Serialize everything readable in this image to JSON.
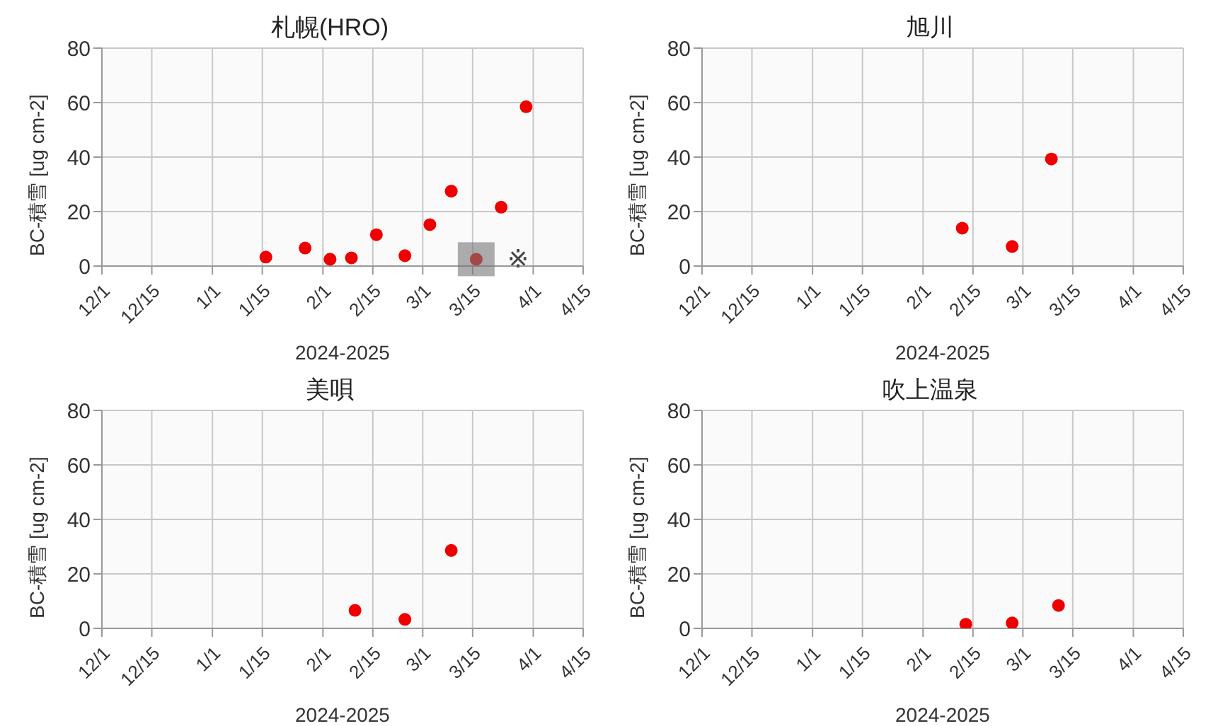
{
  "chart_data": [
    {
      "type": "scatter",
      "title": "札幌(HRO)",
      "xlabel": "2024-2025",
      "ylabel": "BC-積雪 [ug cm-2]",
      "marker": "circle",
      "grid": true,
      "x": [
        "2025-01-16",
        "2025-01-27",
        "2025-02-03",
        "2025-02-09",
        "2025-02-16",
        "2025-02-24",
        "2025-03-03",
        "2025-03-09",
        "2025-03-16",
        "2025-03-23",
        "2025-03-30"
      ],
      "series": [
        {
          "color": "#ee0000",
          "values": [
            3.3,
            6.6,
            2.5,
            3,
            11.5,
            3.8,
            15.2,
            27.5,
            2.5,
            21.6,
            58.5
          ]
        }
      ],
      "xlim": [
        "2024-12-01",
        "2025-04-15"
      ],
      "xticks": [
        {
          "value": "2024-12-01",
          "label": "12/1"
        },
        {
          "value": "2024-12-15",
          "label": "12/15"
        },
        {
          "value": "2025-01-01",
          "label": "1/1"
        },
        {
          "value": "2025-01-15",
          "label": "1/15"
        },
        {
          "value": "2025-02-01",
          "label": "2/1"
        },
        {
          "value": "2025-02-15",
          "label": "2/15"
        },
        {
          "value": "2025-03-01",
          "label": "3/1"
        },
        {
          "value": "2025-03-15",
          "label": "3/15"
        },
        {
          "value": "2025-04-01",
          "label": "4/1"
        },
        {
          "value": "2025-04-15",
          "label": "4/15"
        }
      ],
      "ylim": [
        0,
        80
      ],
      "yticks": [
        0,
        20,
        40,
        60,
        80
      ],
      "annotations": [
        {
          "text": "※",
          "x": "2025-03-16",
          "y": 2.5
        }
      ]
    },
    {
      "type": "scatter",
      "title": "旭川",
      "xlabel": "2024-2025",
      "ylabel": "BC-積雪 [ug cm-2]",
      "marker": "circle",
      "grid": true,
      "x": [
        "2025-02-12",
        "2025-02-26",
        "2025-03-09"
      ],
      "series": [
        {
          "color": "#ee0000",
          "values": [
            13.9,
            7.2,
            39.3
          ]
        }
      ],
      "xlim": [
        "2024-12-01",
        "2025-04-15"
      ],
      "xticks": [
        {
          "value": "2024-12-01",
          "label": "12/1"
        },
        {
          "value": "2024-12-15",
          "label": "12/15"
        },
        {
          "value": "2025-01-01",
          "label": "1/1"
        },
        {
          "value": "2025-01-15",
          "label": "1/15"
        },
        {
          "value": "2025-02-01",
          "label": "2/1"
        },
        {
          "value": "2025-02-15",
          "label": "2/15"
        },
        {
          "value": "2025-03-01",
          "label": "3/1"
        },
        {
          "value": "2025-03-15",
          "label": "3/15"
        },
        {
          "value": "2025-04-01",
          "label": "4/1"
        },
        {
          "value": "2025-04-15",
          "label": "4/15"
        }
      ],
      "ylim": [
        0,
        80
      ],
      "yticks": [
        0,
        20,
        40,
        60,
        80
      ]
    },
    {
      "type": "scatter",
      "title": "美唄",
      "xlabel": "2024-2025",
      "ylabel": "BC-積雪 [ug cm-2]",
      "marker": "circle",
      "grid": true,
      "x": [
        "2025-02-10",
        "2025-02-24",
        "2025-03-09"
      ],
      "series": [
        {
          "color": "#ee0000",
          "values": [
            6.6,
            3.3,
            28.6
          ]
        }
      ],
      "xlim": [
        "2024-12-01",
        "2025-04-15"
      ],
      "xticks": [
        {
          "value": "2024-12-01",
          "label": "12/1"
        },
        {
          "value": "2024-12-15",
          "label": "12/15"
        },
        {
          "value": "2025-01-01",
          "label": "1/1"
        },
        {
          "value": "2025-01-15",
          "label": "1/15"
        },
        {
          "value": "2025-02-01",
          "label": "2/1"
        },
        {
          "value": "2025-02-15",
          "label": "2/15"
        },
        {
          "value": "2025-03-01",
          "label": "3/1"
        },
        {
          "value": "2025-03-15",
          "label": "3/15"
        },
        {
          "value": "2025-04-01",
          "label": "4/1"
        },
        {
          "value": "2025-04-15",
          "label": "4/15"
        }
      ],
      "ylim": [
        0,
        80
      ],
      "yticks": [
        0,
        20,
        40,
        60,
        80
      ]
    },
    {
      "type": "scatter",
      "title": "吹上温泉",
      "xlabel": "2024-2025",
      "ylabel": "BC-積雪 [ug cm-2]",
      "marker": "circle",
      "grid": true,
      "x": [
        "2025-02-13",
        "2025-02-26",
        "2025-03-11"
      ],
      "series": [
        {
          "color": "#ee0000",
          "values": [
            1.5,
            2,
            8.4
          ]
        }
      ],
      "xlim": [
        "2024-12-01",
        "2025-04-15"
      ],
      "xticks": [
        {
          "value": "2024-12-01",
          "label": "12/1"
        },
        {
          "value": "2024-12-15",
          "label": "12/15"
        },
        {
          "value": "2025-01-01",
          "label": "1/1"
        },
        {
          "value": "2025-01-15",
          "label": "1/15"
        },
        {
          "value": "2025-02-01",
          "label": "2/1"
        },
        {
          "value": "2025-02-15",
          "label": "2/15"
        },
        {
          "value": "2025-03-01",
          "label": "3/1"
        },
        {
          "value": "2025-03-15",
          "label": "3/15"
        },
        {
          "value": "2025-04-01",
          "label": "4/1"
        },
        {
          "value": "2025-04-15",
          "label": "4/15"
        }
      ],
      "ylim": [
        0,
        80
      ],
      "yticks": [
        0,
        20,
        40,
        60,
        80
      ]
    }
  ]
}
